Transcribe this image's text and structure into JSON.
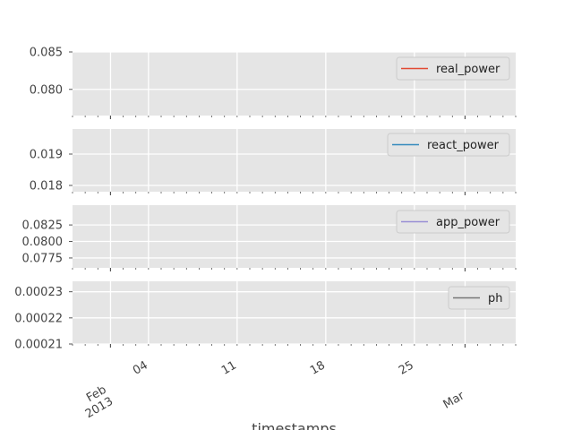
{
  "chart_data": {
    "type": "line",
    "xlabel": "timestamps",
    "x_axis": {
      "range": [
        "2013-01-29",
        "2013-03-05"
      ],
      "major_ticks": [
        {
          "date": "2013-02-01",
          "label": [
            "Feb",
            "2013"
          ]
        },
        {
          "date": "2013-03-01",
          "label": [
            "Mar"
          ]
        }
      ],
      "minor_ticks": [
        {
          "date": "2013-02-04",
          "label": "04"
        },
        {
          "date": "2013-02-11",
          "label": "11"
        },
        {
          "date": "2013-02-18",
          "label": "18"
        },
        {
          "date": "2013-02-25",
          "label": "25"
        }
      ]
    },
    "grid": true,
    "legend_placement": "upper right",
    "subplots": [
      {
        "series": [
          {
            "name": "real_power",
            "color": "#E24A33",
            "values": []
          }
        ],
        "ylim": [
          0.0765,
          0.085
        ],
        "yticks": [
          0.08,
          0.085
        ],
        "ytick_labels": [
          "0.080",
          "0.085"
        ]
      },
      {
        "series": [
          {
            "name": "react_power",
            "color": "#348ABD",
            "values": []
          }
        ],
        "ylim": [
          0.0178,
          0.0198
        ],
        "yticks": [
          0.018,
          0.019
        ],
        "ytick_labels": [
          "0.018",
          "0.019"
        ]
      },
      {
        "series": [
          {
            "name": "app_power",
            "color": "#988ED5",
            "values": []
          }
        ],
        "ylim": [
          0.076,
          0.0855
        ],
        "yticks": [
          0.0775,
          0.08,
          0.0825
        ],
        "ytick_labels": [
          "0.0775",
          "0.0800",
          "0.0825"
        ]
      },
      {
        "series": [
          {
            "name": "ph",
            "color": "#777777",
            "values": []
          }
        ],
        "ylim": [
          0.00021,
          0.000234
        ],
        "yticks": [
          0.00021,
          0.00022,
          0.00023
        ],
        "ytick_labels": [
          "0.00021",
          "0.00022",
          "0.00023"
        ]
      }
    ]
  }
}
